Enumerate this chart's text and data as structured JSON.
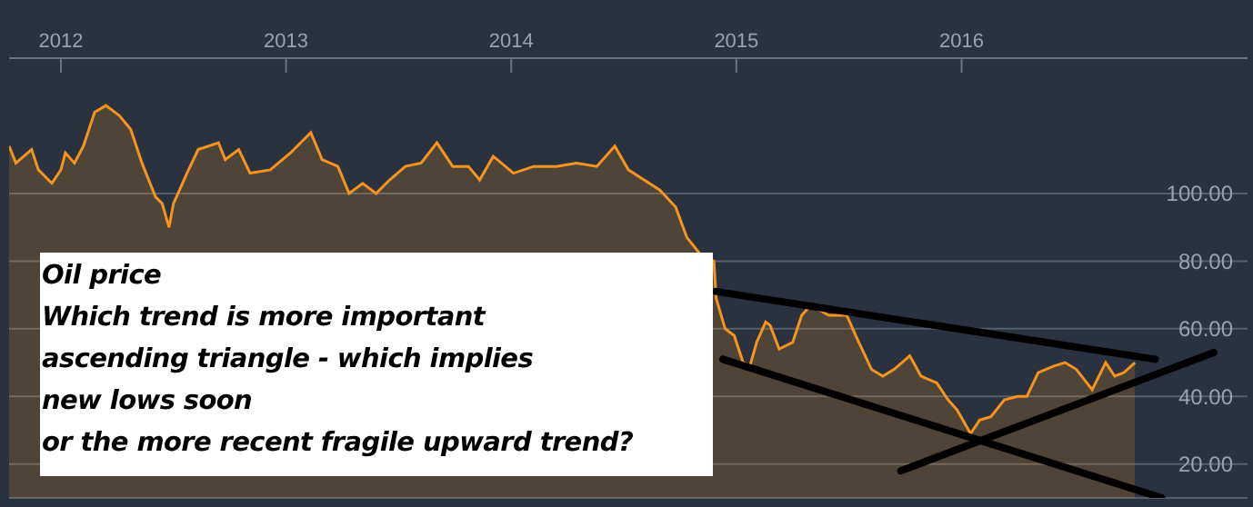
{
  "chart_data": {
    "type": "area",
    "title": "Oil price",
    "annotations": [
      "Which trend is more important",
      "ascending triangle - which implies",
      "new lows soon",
      "or the more recent fragile upward trend?"
    ],
    "xlim": [
      2011.77,
      2017.27
    ],
    "xticks": [
      2012,
      2013,
      2014,
      2015,
      2016
    ],
    "ylim": [
      10,
      140
    ],
    "yticks": [
      {
        "value": 20,
        "label": "20.00"
      },
      {
        "value": 40,
        "label": "40.00"
      },
      {
        "value": 60,
        "label": "60.00"
      },
      {
        "value": 80,
        "label": "80.00"
      },
      {
        "value": 100,
        "label": "100.00"
      }
    ],
    "grid": "y",
    "series": [
      {
        "color": "#f7941d",
        "x": [
          2011.77,
          2011.8,
          2011.87,
          2011.9,
          2011.96,
          2012.0,
          2012.02,
          2012.06,
          2012.1,
          2012.15,
          2012.2,
          2012.26,
          2012.31,
          2012.36,
          2012.42,
          2012.45,
          2012.48,
          2012.5,
          2012.56,
          2012.61,
          2012.7,
          2012.73,
          2012.79,
          2012.84,
          2012.93,
          2013.02,
          2013.11,
          2013.16,
          2013.23,
          2013.28,
          2013.34,
          2013.4,
          2013.46,
          2013.53,
          2013.6,
          2013.67,
          2013.74,
          2013.81,
          2013.86,
          2013.92,
          2014.01,
          2014.1,
          2014.2,
          2014.29,
          2014.38,
          2014.46,
          2014.52,
          2014.59,
          2014.66,
          2014.73,
          2014.78,
          2014.84,
          2014.9,
          2014.91,
          2014.95,
          2014.99,
          2015.03,
          2015.06,
          2015.09,
          2015.13,
          2015.15,
          2015.19,
          2015.25,
          2015.29,
          2015.33,
          2015.41,
          2015.49,
          2015.53,
          2015.6,
          2015.65,
          2015.7,
          2015.77,
          2015.82,
          2015.89,
          2015.94,
          2015.98,
          2016.04,
          2016.08,
          2016.13,
          2016.19,
          2016.25,
          2016.29,
          2016.34,
          2016.41,
          2016.46,
          2016.51,
          2016.58,
          2016.64,
          2016.68,
          2016.72,
          2016.77
        ],
        "values": [
          114,
          109,
          113,
          107,
          103,
          107,
          112,
          109,
          114,
          124,
          126,
          123,
          119,
          109,
          99,
          97,
          90,
          97,
          106,
          113,
          115,
          110,
          113,
          106,
          107,
          112,
          118,
          110,
          108,
          100,
          103,
          100,
          104,
          108,
          109,
          115,
          108,
          108,
          104,
          111,
          106,
          108,
          108,
          109,
          108,
          114,
          107,
          104,
          101,
          96,
          87,
          82,
          80,
          69,
          60,
          58,
          50,
          49,
          56,
          62,
          61,
          54,
          56,
          64,
          67,
          64,
          64,
          58,
          48,
          46,
          48,
          52,
          46,
          44,
          39,
          36,
          29,
          33,
          34,
          39,
          40,
          40,
          47,
          49,
          50,
          48,
          42,
          50,
          46,
          47,
          50
        ]
      },
      {
        "type": "line",
        "color": "#000000",
        "x": [
          2014.91,
          2016.86
        ],
        "values": [
          71,
          51
        ]
      },
      {
        "type": "line",
        "color": "#000000",
        "x": [
          2014.94,
          2016.89
        ],
        "values": [
          51,
          10
        ]
      },
      {
        "type": "line",
        "color": "#000000",
        "x": [
          2015.73,
          2017.12
        ],
        "values": [
          18,
          53
        ]
      }
    ]
  }
}
